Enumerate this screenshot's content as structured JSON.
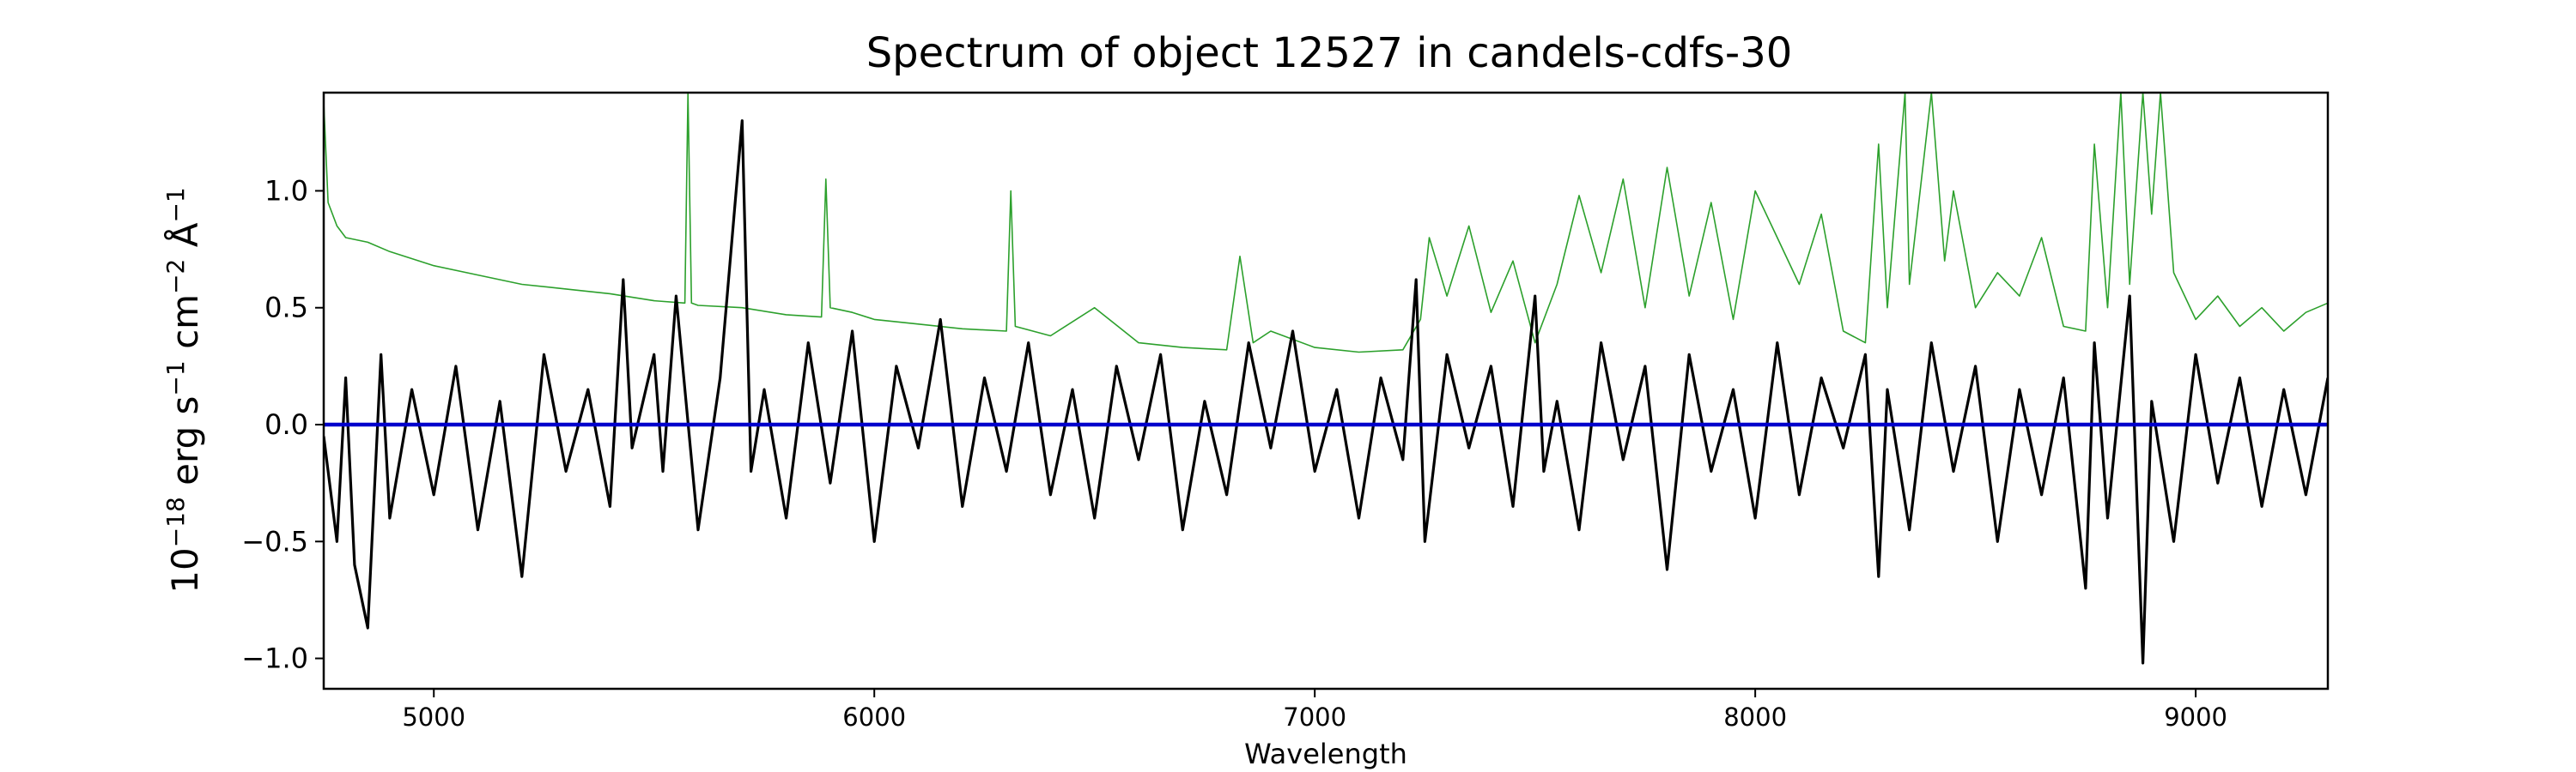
{
  "chart_data": {
    "type": "line",
    "title": "Spectrum of object 12527 in candels-cdfs-30",
    "xlabel": "Wavelength",
    "ylabel": {
      "base": "10",
      "exp_base": "−18",
      "unit1": " erg s",
      "exp1": "−1",
      "unit2": " cm",
      "exp2": "−2",
      "unit3": " Å",
      "exp3": "−1"
    },
    "xlim": [
      4750,
      9300
    ],
    "ylim": [
      -1.13,
      1.42
    ],
    "xticks": [
      5000,
      6000,
      7000,
      8000,
      9000
    ],
    "xtick_labels": [
      "5000",
      "6000",
      "7000",
      "8000",
      "9000"
    ],
    "yticks": [
      -1.0,
      -0.5,
      0.0,
      0.5,
      1.0
    ],
    "ytick_labels": [
      "−1.0",
      "−0.5",
      "0.0",
      "0.5",
      "1.0"
    ],
    "grid": false,
    "series": [
      {
        "color": "#2ca02c",
        "note_style": "thin",
        "x": [
          4750,
          4760,
          4780,
          4800,
          4850,
          4900,
          5000,
          5100,
          5200,
          5300,
          5400,
          5500,
          5570,
          5577,
          5585,
          5600,
          5700,
          5800,
          5880,
          5890,
          5900,
          5950,
          6000,
          6100,
          6200,
          6300,
          6310,
          6320,
          6400,
          6500,
          6600,
          6700,
          6800,
          6830,
          6860,
          6900,
          7000,
          7100,
          7200,
          7240,
          7260,
          7300,
          7350,
          7400,
          7450,
          7500,
          7550,
          7600,
          7650,
          7700,
          7750,
          7800,
          7850,
          7900,
          7950,
          8000,
          8050,
          8100,
          8150,
          8200,
          8250,
          8280,
          8300,
          8340,
          8350,
          8400,
          8430,
          8450,
          8500,
          8550,
          8600,
          8650,
          8700,
          8750,
          8770,
          8800,
          8830,
          8850,
          8880,
          8900,
          8920,
          8950,
          9000,
          9050,
          9100,
          9150,
          9200,
          9250,
          9300
        ],
        "y": [
          1.38,
          0.95,
          0.85,
          0.8,
          0.78,
          0.74,
          0.68,
          0.64,
          0.6,
          0.58,
          0.56,
          0.53,
          0.52,
          1.42,
          0.52,
          0.51,
          0.5,
          0.47,
          0.46,
          1.05,
          0.5,
          0.48,
          0.45,
          0.43,
          0.41,
          0.4,
          1.0,
          0.42,
          0.38,
          0.5,
          0.35,
          0.33,
          0.32,
          0.72,
          0.35,
          0.4,
          0.33,
          0.31,
          0.32,
          0.45,
          0.8,
          0.55,
          0.85,
          0.48,
          0.7,
          0.35,
          0.6,
          0.98,
          0.65,
          1.05,
          0.5,
          1.1,
          0.55,
          0.95,
          0.45,
          1.0,
          0.8,
          0.6,
          0.9,
          0.4,
          0.35,
          1.2,
          0.5,
          1.42,
          0.6,
          1.42,
          0.7,
          1.0,
          0.5,
          0.65,
          0.55,
          0.8,
          0.42,
          0.4,
          1.2,
          0.5,
          1.42,
          0.6,
          1.42,
          0.9,
          1.42,
          0.65,
          0.45,
          0.55,
          0.42,
          0.5,
          0.4,
          0.48,
          0.52
        ]
      },
      {
        "color": "#000000",
        "note_style": "noisy",
        "x": [
          4750,
          4780,
          4800,
          4820,
          4850,
          4880,
          4900,
          4950,
          5000,
          5050,
          5100,
          5150,
          5200,
          5250,
          5300,
          5350,
          5400,
          5430,
          5450,
          5500,
          5520,
          5550,
          5600,
          5650,
          5700,
          5720,
          5750,
          5800,
          5850,
          5900,
          5950,
          6000,
          6050,
          6100,
          6150,
          6200,
          6250,
          6300,
          6350,
          6400,
          6450,
          6500,
          6550,
          6600,
          6650,
          6700,
          6750,
          6800,
          6850,
          6900,
          6950,
          7000,
          7050,
          7100,
          7150,
          7200,
          7230,
          7250,
          7300,
          7350,
          7400,
          7450,
          7500,
          7520,
          7550,
          7600,
          7650,
          7700,
          7750,
          7800,
          7850,
          7900,
          7950,
          8000,
          8050,
          8100,
          8150,
          8200,
          8250,
          8280,
          8300,
          8350,
          8400,
          8450,
          8500,
          8550,
          8600,
          8650,
          8700,
          8750,
          8770,
          8800,
          8850,
          8880,
          8900,
          8950,
          9000,
          9050,
          9100,
          9150,
          9200,
          9250,
          9300
        ],
        "y": [
          -0.05,
          -0.5,
          0.2,
          -0.6,
          -0.87,
          0.3,
          -0.4,
          0.15,
          -0.3,
          0.25,
          -0.45,
          0.1,
          -0.65,
          0.3,
          -0.2,
          0.15,
          -0.35,
          0.62,
          -0.1,
          0.3,
          -0.2,
          0.55,
          -0.45,
          0.2,
          1.3,
          -0.2,
          0.15,
          -0.4,
          0.35,
          -0.25,
          0.4,
          -0.5,
          0.25,
          -0.1,
          0.45,
          -0.35,
          0.2,
          -0.2,
          0.35,
          -0.3,
          0.15,
          -0.4,
          0.25,
          -0.15,
          0.3,
          -0.45,
          0.1,
          -0.3,
          0.35,
          -0.1,
          0.4,
          -0.2,
          0.15,
          -0.4,
          0.2,
          -0.15,
          0.62,
          -0.5,
          0.3,
          -0.1,
          0.25,
          -0.35,
          0.55,
          -0.2,
          0.1,
          -0.45,
          0.35,
          -0.15,
          0.25,
          -0.62,
          0.3,
          -0.2,
          0.15,
          -0.4,
          0.35,
          -0.3,
          0.2,
          -0.1,
          0.3,
          -0.65,
          0.15,
          -0.45,
          0.35,
          -0.2,
          0.25,
          -0.5,
          0.15,
          -0.3,
          0.2,
          -0.7,
          0.35,
          -0.4,
          0.55,
          -1.02,
          0.1,
          -0.5,
          0.3,
          -0.25,
          0.2,
          -0.35,
          0.15,
          -0.3,
          0.2
        ]
      },
      {
        "color": "#0000cc",
        "note_style": "thick",
        "x": [
          4750,
          9300
        ],
        "y": [
          0.0,
          0.0
        ]
      }
    ]
  }
}
